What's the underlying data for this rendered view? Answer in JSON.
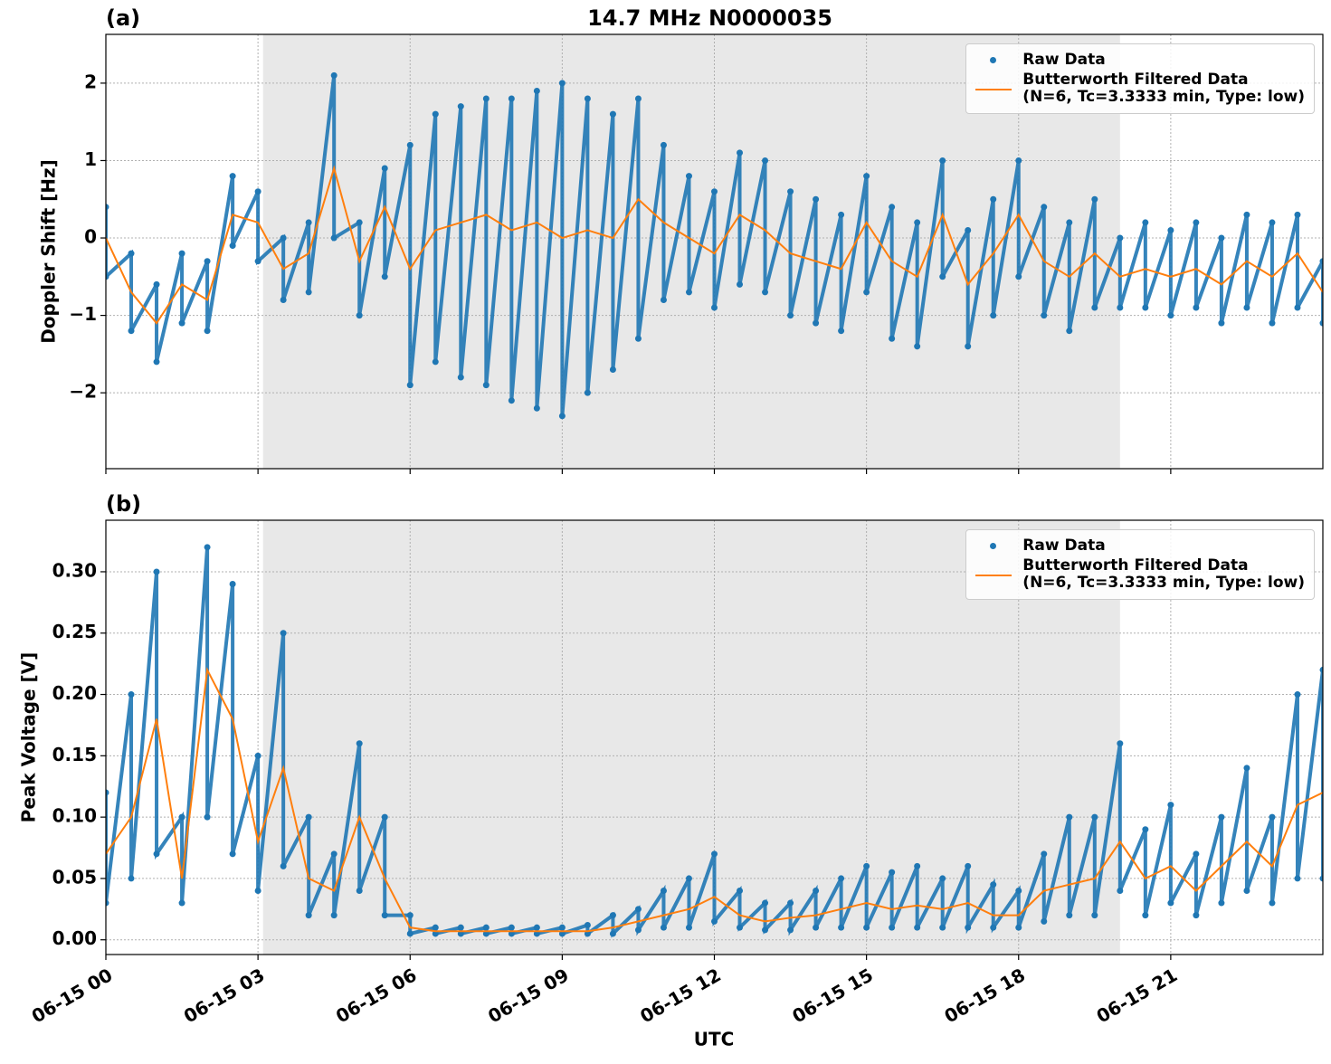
{
  "chart_data": [
    {
      "type": "line",
      "panel_label": "(a)",
      "title": "14.7 MHz N0000035",
      "ylabel": "Doppler Shift [Hz]",
      "xlim": [
        0,
        24
      ],
      "xticks": [
        0,
        3,
        6,
        9,
        12,
        15,
        18,
        21
      ],
      "ylim": [
        -2.98,
        2.63
      ],
      "yticks": [
        {
          "value": -2,
          "label": "−2"
        },
        {
          "value": -1,
          "label": "−1"
        },
        0,
        1,
        2
      ],
      "grid": true,
      "legend": "upper right",
      "shaded_span": [
        3.1,
        20.0
      ],
      "series": [
        {
          "name": "Raw Data",
          "color": "#1f77b4",
          "style": "dots",
          "x": [
            0,
            0,
            0.5,
            0.5,
            1,
            1,
            1.5,
            1.5,
            2,
            2,
            2.5,
            2.5,
            3,
            3,
            3.5,
            3.5,
            4,
            4,
            4.5,
            4.5,
            5,
            5,
            5.5,
            5.5,
            6,
            6,
            6.5,
            6.5,
            7,
            7,
            7.5,
            7.5,
            8,
            8,
            8.5,
            8.5,
            9,
            9,
            9.5,
            9.5,
            10,
            10,
            10.5,
            10.5,
            11,
            11,
            11.5,
            11.5,
            12,
            12,
            12.5,
            12.5,
            13,
            13,
            13.5,
            13.5,
            14,
            14,
            14.5,
            14.5,
            15,
            15,
            15.5,
            15.5,
            16,
            16,
            16.5,
            16.5,
            17,
            17,
            17.5,
            17.5,
            18,
            18,
            18.5,
            18.5,
            19,
            19,
            19.5,
            19.5,
            20,
            20,
            20.5,
            20.5,
            21,
            21,
            21.5,
            21.5,
            22,
            22,
            22.5,
            22.5,
            23,
            23,
            23.5,
            23.5,
            24,
            24
          ],
          "values": [
            0.4,
            -0.5,
            -0.2,
            -1.2,
            -0.6,
            -1.6,
            -0.2,
            -1.1,
            -0.3,
            -1.2,
            0.8,
            -0.1,
            0.6,
            -0.3,
            0,
            -0.8,
            0.2,
            -0.7,
            2.1,
            0,
            0.2,
            -1.0,
            0.9,
            -0.5,
            1.2,
            -1.9,
            1.6,
            -1.6,
            1.7,
            -1.8,
            1.8,
            -1.9,
            1.8,
            -2.1,
            1.9,
            -2.2,
            2.0,
            -2.3,
            1.8,
            -2.0,
            1.6,
            -1.7,
            1.8,
            -1.3,
            1.2,
            -0.8,
            0.8,
            -0.7,
            0.6,
            -0.9,
            1.1,
            -0.6,
            1.0,
            -0.7,
            0.6,
            -1.0,
            0.5,
            -1.1,
            0.3,
            -1.2,
            0.8,
            -0.7,
            0.4,
            -1.3,
            0.2,
            -1.4,
            1.0,
            -0.5,
            0.1,
            -1.4,
            0.5,
            -1.0,
            1.0,
            -0.5,
            0.4,
            -1.0,
            0.2,
            -1.2,
            0.5,
            -0.9,
            0,
            -0.9,
            0.2,
            -0.9,
            0.1,
            -1.0,
            0.2,
            -0.9,
            0,
            -1.1,
            0.3,
            -0.9,
            0.2,
            -1.1,
            0.3,
            -0.9,
            -0.3,
            -1.1
          ]
        },
        {
          "name": "Butterworth Filtered Data\n(N=6, Tc=3.3333 min, Type: low)",
          "color": "#ff7f0e",
          "style": "line",
          "x": [
            0,
            0.5,
            1,
            1.5,
            2,
            2.5,
            3,
            3.5,
            4,
            4.5,
            5,
            5.5,
            6,
            6.5,
            7,
            7.5,
            8,
            8.5,
            9,
            9.5,
            10,
            10.5,
            11,
            11.5,
            12,
            12.5,
            13,
            13.5,
            14,
            14.5,
            15,
            15.5,
            16,
            16.5,
            17,
            17.5,
            18,
            18.5,
            19,
            19.5,
            20,
            20.5,
            21,
            21.5,
            22,
            22.5,
            23,
            23.5,
            24
          ],
          "values": [
            0,
            -0.7,
            -1.1,
            -0.6,
            -0.8,
            0.3,
            0.2,
            -0.4,
            -0.2,
            0.9,
            -0.3,
            0.4,
            -0.4,
            0.1,
            0.2,
            0.3,
            0.1,
            0.2,
            0,
            0.1,
            0,
            0.5,
            0.2,
            0,
            -0.2,
            0.3,
            0.1,
            -0.2,
            -0.3,
            -0.4,
            0.2,
            -0.3,
            -0.5,
            0.3,
            -0.6,
            -0.2,
            0.3,
            -0.3,
            -0.5,
            -0.2,
            -0.5,
            -0.4,
            -0.5,
            -0.4,
            -0.6,
            -0.3,
            -0.5,
            -0.2,
            -0.7
          ]
        }
      ]
    },
    {
      "type": "line",
      "panel_label": "(b)",
      "ylabel": "Peak Voltage [V]",
      "xlabel": "UTC",
      "xlim": [
        0,
        24
      ],
      "xticks": [
        {
          "value": 0,
          "label": "06-15 00"
        },
        {
          "value": 3,
          "label": "06-15 03"
        },
        {
          "value": 6,
          "label": "06-15 06"
        },
        {
          "value": 9,
          "label": "06-15 09"
        },
        {
          "value": 12,
          "label": "06-15 12"
        },
        {
          "value": 15,
          "label": "06-15 15"
        },
        {
          "value": 18,
          "label": "06-15 18"
        },
        {
          "value": 21,
          "label": "06-15 21"
        }
      ],
      "ylim": [
        -0.012,
        0.342
      ],
      "yticks": [
        {
          "value": 0,
          "label": "0.00"
        },
        {
          "value": 0.05,
          "label": "0.05"
        },
        {
          "value": 0.1,
          "label": "0.10"
        },
        {
          "value": 0.15,
          "label": "0.15"
        },
        {
          "value": 0.2,
          "label": "0.20"
        },
        {
          "value": 0.25,
          "label": "0.25"
        },
        {
          "value": 0.3,
          "label": "0.30"
        }
      ],
      "grid": true,
      "legend": "upper right",
      "shaded_span": [
        3.1,
        20.0
      ],
      "series": [
        {
          "name": "Raw Data",
          "color": "#1f77b4",
          "style": "dots",
          "x": [
            0,
            0,
            0.5,
            0.5,
            1,
            1,
            1.5,
            1.5,
            2,
            2,
            2.5,
            2.5,
            3,
            3,
            3.5,
            3.5,
            4,
            4,
            4.5,
            4.5,
            5,
            5,
            5.5,
            5.5,
            6,
            6,
            6.5,
            6.5,
            7,
            7,
            7.5,
            7.5,
            8,
            8,
            8.5,
            8.5,
            9,
            9,
            9.5,
            9.5,
            10,
            10,
            10.5,
            10.5,
            11,
            11,
            11.5,
            11.5,
            12,
            12,
            12.5,
            12.5,
            13,
            13,
            13.5,
            13.5,
            14,
            14,
            14.5,
            14.5,
            15,
            15,
            15.5,
            15.5,
            16,
            16,
            16.5,
            16.5,
            17,
            17,
            17.5,
            17.5,
            18,
            18,
            18.5,
            18.5,
            19,
            19,
            19.5,
            19.5,
            20,
            20,
            20.5,
            20.5,
            21,
            21,
            21.5,
            21.5,
            22,
            22,
            22.5,
            22.5,
            23,
            23,
            23.5,
            23.5,
            24,
            24
          ],
          "values": [
            0.12,
            0.03,
            0.2,
            0.05,
            0.3,
            0.07,
            0.1,
            0.03,
            0.32,
            0.1,
            0.29,
            0.07,
            0.15,
            0.04,
            0.25,
            0.06,
            0.1,
            0.02,
            0.07,
            0.02,
            0.16,
            0.04,
            0.1,
            0.02,
            0.02,
            0.005,
            0.01,
            0.005,
            0.01,
            0.005,
            0.01,
            0.005,
            0.01,
            0.005,
            0.01,
            0.005,
            0.01,
            0.005,
            0.012,
            0.005,
            0.02,
            0.005,
            0.025,
            0.008,
            0.04,
            0.01,
            0.05,
            0.01,
            0.07,
            0.015,
            0.04,
            0.01,
            0.03,
            0.008,
            0.03,
            0.008,
            0.04,
            0.01,
            0.05,
            0.01,
            0.06,
            0.01,
            0.055,
            0.01,
            0.06,
            0.01,
            0.05,
            0.01,
            0.06,
            0.01,
            0.045,
            0.01,
            0.04,
            0.01,
            0.07,
            0.015,
            0.1,
            0.02,
            0.1,
            0.02,
            0.16,
            0.04,
            0.09,
            0.02,
            0.11,
            0.03,
            0.07,
            0.02,
            0.1,
            0.03,
            0.14,
            0.04,
            0.1,
            0.03,
            0.2,
            0.05,
            0.22,
            0.05
          ]
        },
        {
          "name": "Butterworth Filtered Data\n(N=6, Tc=3.3333 min, Type: low)",
          "color": "#ff7f0e",
          "style": "line",
          "x": [
            0,
            0.5,
            1,
            1.5,
            2,
            2.5,
            3,
            3.5,
            4,
            4.5,
            5,
            5.5,
            6,
            6.5,
            7,
            7.5,
            8,
            8.5,
            9,
            9.5,
            10,
            10.5,
            11,
            11.5,
            12,
            12.5,
            13,
            13.5,
            14,
            14.5,
            15,
            15.5,
            16,
            16.5,
            17,
            17.5,
            18,
            18.5,
            19,
            19.5,
            20,
            20.5,
            21,
            21.5,
            22,
            22.5,
            23,
            23.5,
            24
          ],
          "values": [
            0.07,
            0.1,
            0.18,
            0.05,
            0.22,
            0.18,
            0.08,
            0.14,
            0.05,
            0.04,
            0.1,
            0.05,
            0.01,
            0.007,
            0.007,
            0.007,
            0.007,
            0.007,
            0.007,
            0.007,
            0.01,
            0.015,
            0.02,
            0.025,
            0.035,
            0.02,
            0.015,
            0.018,
            0.02,
            0.025,
            0.03,
            0.025,
            0.028,
            0.025,
            0.03,
            0.02,
            0.02,
            0.04,
            0.045,
            0.05,
            0.08,
            0.05,
            0.06,
            0.04,
            0.06,
            0.08,
            0.06,
            0.11,
            0.12
          ]
        }
      ]
    }
  ]
}
